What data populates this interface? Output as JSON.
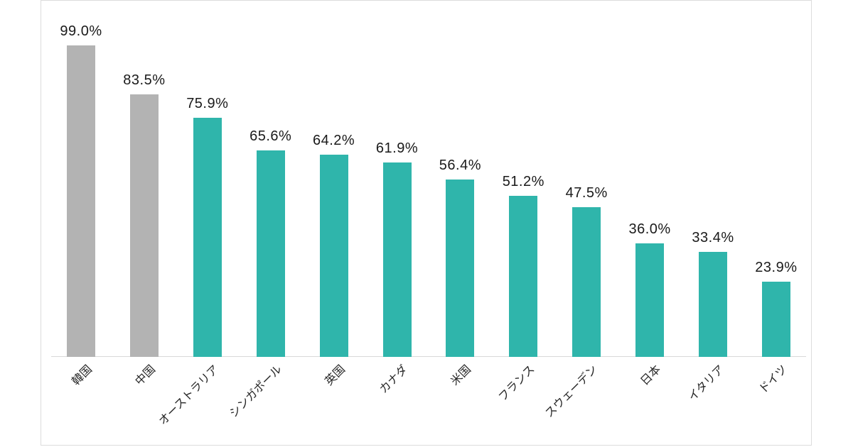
{
  "chart_data": {
    "type": "bar",
    "title": "",
    "xlabel": "",
    "ylabel": "",
    "ylim": [
      0,
      100
    ],
    "grid": false,
    "legend": false,
    "value_suffix": "%",
    "categories": [
      "韓国",
      "中国",
      "オーストラリア",
      "シンガポール",
      "英国",
      "カナダ",
      "米国",
      "フランス",
      "スウェーデン",
      "日本",
      "イタリア",
      "ドイツ"
    ],
    "values": [
      99.0,
      83.5,
      75.9,
      65.6,
      64.2,
      61.9,
      56.4,
      51.2,
      47.5,
      36.0,
      33.4,
      23.9
    ],
    "value_labels": [
      "99.0%",
      "83.5%",
      "75.9%",
      "65.6%",
      "64.2%",
      "61.9%",
      "56.4%",
      "51.2%",
      "47.5%",
      "36.0%",
      "33.4%",
      "23.9%"
    ],
    "bar_colors": [
      "#b3b3b3",
      "#b3b3b3",
      "#2fb5ab",
      "#2fb5ab",
      "#2fb5ab",
      "#2fb5ab",
      "#2fb5ab",
      "#2fb5ab",
      "#2fb5ab",
      "#2fb5ab",
      "#2fb5ab",
      "#2fb5ab"
    ]
  },
  "colors": {
    "bar_gray": "#b3b3b3",
    "bar_teal": "#2fb5ab",
    "axis_line": "#d9d9d9",
    "panel_border": "#dcdcdc",
    "label_text": "#1a1a1a"
  }
}
